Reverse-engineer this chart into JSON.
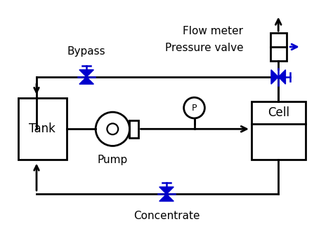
{
  "bg_color": "#ffffff",
  "line_color": "#000000",
  "valve_color": "#0000cd",
  "text_color": "#000000",
  "label_bypass": "Bypass",
  "label_pump": "Pump",
  "label_concentrate": "Concentrate",
  "label_flow_meter": "Flow meter",
  "label_pressure_valve": "Pressure valve",
  "label_tank": "Tank",
  "label_cell": "Cell",
  "label_P": "P",
  "figsize": [
    4.74,
    3.5
  ],
  "dpi": 100
}
